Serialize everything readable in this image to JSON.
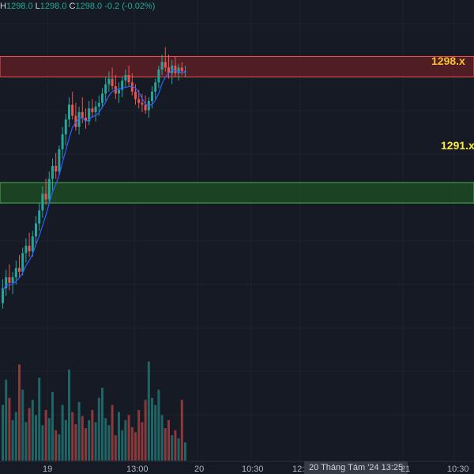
{
  "legend": {
    "h_key": "H",
    "h_val": "1298.0",
    "l_key": "L",
    "l_val": "1298.0",
    "c_key": "C",
    "c_val": "1298.0",
    "change": "-0.2 (-0.02%)"
  },
  "zones": {
    "resistance": {
      "label": "1298.x",
      "color": "#fbc02d"
    },
    "support": {
      "label": "1291.x",
      "color": "#ffeb3b"
    }
  },
  "time_axis": {
    "ticks": [
      "19",
      "13:00",
      "20",
      "10:30",
      "12:",
      "21",
      "10:30"
    ],
    "crosshair_label": "20 Tháng Tám '24   13:25"
  },
  "colors": {
    "background": "#161a25",
    "up": "#26a69a",
    "down": "#ef5350",
    "ma": "#2962ff",
    "resistance_fill": "#5c1f26",
    "support_fill": "#1d4a25"
  },
  "chart_data": {
    "type": "candlestick",
    "price_range_visible": [
      1276.3,
      1299.5
    ],
    "resistance_zone": [
      1297.7,
      1298.8
    ],
    "support_zone": [
      1290.9,
      1292.0
    ],
    "candles": [
      [
        1285.5,
        1286.8,
        1285.2,
        1286.3
      ],
      [
        1286.3,
        1287.3,
        1285.9,
        1286.9
      ],
      [
        1286.9,
        1287.6,
        1286.2,
        1286.6
      ],
      [
        1286.6,
        1287.2,
        1286.0,
        1286.9
      ],
      [
        1286.9,
        1287.8,
        1286.5,
        1287.4
      ],
      [
        1287.4,
        1288.1,
        1286.9,
        1287.2
      ],
      [
        1287.2,
        1288.5,
        1287.0,
        1288.2
      ],
      [
        1288.2,
        1289.0,
        1287.7,
        1288.6
      ],
      [
        1288.6,
        1289.3,
        1288.0,
        1288.3
      ],
      [
        1288.3,
        1289.4,
        1288.0,
        1289.1
      ],
      [
        1289.1,
        1290.2,
        1288.6,
        1289.8
      ],
      [
        1289.8,
        1290.9,
        1289.4,
        1290.5
      ],
      [
        1290.5,
        1291.8,
        1290.1,
        1291.4
      ],
      [
        1291.4,
        1292.2,
        1290.8,
        1291.1
      ],
      [
        1291.1,
        1292.6,
        1290.9,
        1292.2
      ],
      [
        1292.2,
        1293.3,
        1291.6,
        1292.9
      ],
      [
        1292.9,
        1293.6,
        1292.2,
        1292.6
      ],
      [
        1292.6,
        1294.0,
        1292.4,
        1293.8
      ],
      [
        1293.8,
        1295.0,
        1293.3,
        1294.6
      ],
      [
        1294.6,
        1295.7,
        1294.0,
        1295.4
      ],
      [
        1295.4,
        1296.6,
        1295.0,
        1296.2
      ],
      [
        1296.2,
        1296.9,
        1295.4,
        1295.6
      ],
      [
        1295.6,
        1296.3,
        1294.8,
        1295.0
      ],
      [
        1295.0,
        1296.1,
        1294.6,
        1295.8
      ],
      [
        1295.8,
        1296.6,
        1295.2,
        1295.5
      ],
      [
        1295.5,
        1296.0,
        1294.9,
        1295.3
      ],
      [
        1295.3,
        1296.4,
        1295.1,
        1296.0
      ],
      [
        1296.0,
        1296.5,
        1295.5,
        1295.8
      ],
      [
        1295.8,
        1296.4,
        1295.3,
        1296.1
      ],
      [
        1296.1,
        1296.7,
        1295.6,
        1296.3
      ],
      [
        1296.3,
        1297.1,
        1296.0,
        1296.8
      ],
      [
        1296.8,
        1297.7,
        1296.4,
        1297.3
      ],
      [
        1297.3,
        1298.0,
        1296.9,
        1297.6
      ],
      [
        1297.6,
        1298.2,
        1297.0,
        1297.2
      ],
      [
        1297.2,
        1297.8,
        1296.5,
        1296.8
      ],
      [
        1296.8,
        1297.4,
        1296.3,
        1297.0
      ],
      [
        1297.0,
        1297.7,
        1296.6,
        1297.5
      ],
      [
        1297.5,
        1298.1,
        1297.1,
        1297.8
      ],
      [
        1297.8,
        1298.3,
        1297.2,
        1297.4
      ],
      [
        1297.4,
        1297.9,
        1296.7,
        1296.9
      ],
      [
        1296.9,
        1297.3,
        1296.2,
        1296.5
      ],
      [
        1296.5,
        1297.0,
        1296.0,
        1296.3
      ],
      [
        1296.3,
        1296.8,
        1295.8,
        1296.2
      ],
      [
        1296.2,
        1296.7,
        1295.7,
        1295.9
      ],
      [
        1295.9,
        1296.6,
        1295.5,
        1296.4
      ],
      [
        1296.4,
        1297.2,
        1296.0,
        1296.9
      ],
      [
        1296.9,
        1297.6,
        1296.5,
        1297.4
      ],
      [
        1297.4,
        1298.3,
        1297.1,
        1298.1
      ],
      [
        1298.1,
        1298.9,
        1297.8,
        1298.5
      ],
      [
        1298.5,
        1299.3,
        1298.0,
        1298.2
      ],
      [
        1298.2,
        1298.9,
        1297.6,
        1297.9
      ],
      [
        1297.9,
        1298.6,
        1297.3,
        1298.3
      ],
      [
        1298.3,
        1298.8,
        1297.7,
        1297.9
      ],
      [
        1297.9,
        1298.4,
        1297.5,
        1298.2
      ],
      [
        1298.2,
        1298.5,
        1297.8,
        1298.0
      ],
      [
        1298.0,
        1298.3,
        1297.7,
        1298.0
      ]
    ],
    "volume_relative": [
      0.55,
      0.8,
      0.62,
      0.4,
      0.48,
      0.95,
      0.7,
      0.38,
      0.52,
      0.6,
      0.45,
      0.82,
      0.35,
      0.5,
      0.42,
      0.68,
      0.3,
      0.26,
      0.55,
      0.4,
      0.9,
      0.48,
      0.36,
      0.58,
      0.44,
      0.32,
      0.4,
      0.5,
      0.38,
      0.62,
      0.72,
      0.42,
      0.35,
      0.55,
      0.25,
      0.48,
      0.3,
      0.4,
      0.45,
      0.33,
      0.28,
      0.5,
      0.38,
      0.6,
      0.98,
      0.62,
      0.55,
      0.7,
      0.45,
      0.32,
      0.4,
      0.25,
      0.3,
      0.22,
      0.6,
      0.18
    ]
  }
}
